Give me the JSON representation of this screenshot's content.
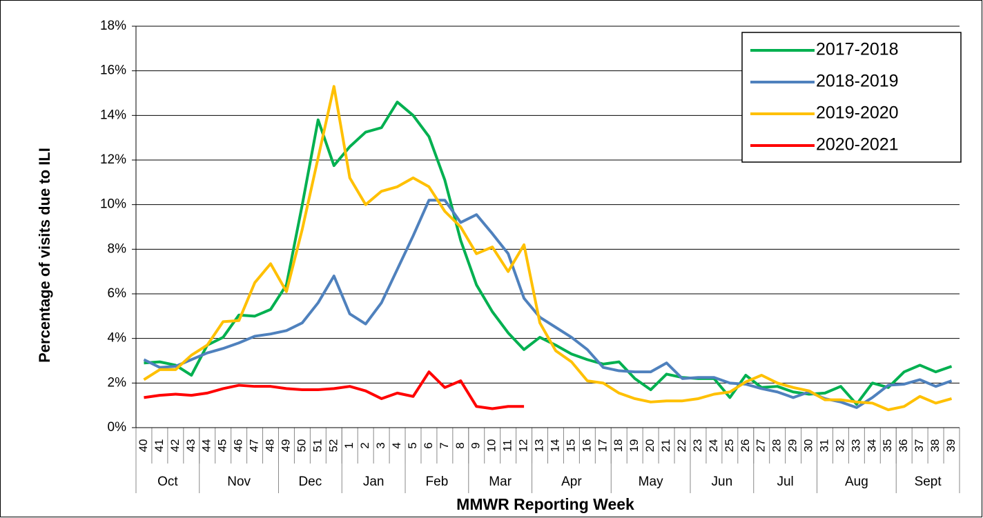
{
  "chart_data": {
    "type": "line",
    "y_label": "Percentage of visits due to ILI",
    "x_label": "MMWR Reporting Week",
    "categories": [
      "40",
      "41",
      "42",
      "43",
      "44",
      "45",
      "46",
      "47",
      "48",
      "49",
      "50",
      "51",
      "52",
      "1",
      "2",
      "3",
      "4",
      "5",
      "6",
      "7",
      "8",
      "9",
      "10",
      "11",
      "12",
      "13",
      "14",
      "15",
      "16",
      "17",
      "18",
      "19",
      "20",
      "21",
      "22",
      "23",
      "24",
      "25",
      "26",
      "27",
      "28",
      "29",
      "30",
      "31",
      "32",
      "33",
      "34",
      "35",
      "36",
      "37",
      "38",
      "39"
    ],
    "month_groups": [
      {
        "label": "Oct",
        "weeks": 4
      },
      {
        "label": "Nov",
        "weeks": 5
      },
      {
        "label": "Dec",
        "weeks": 4
      },
      {
        "label": "Jan",
        "weeks": 4
      },
      {
        "label": "Feb",
        "weeks": 4
      },
      {
        "label": "Mar",
        "weeks": 4
      },
      {
        "label": "Apr",
        "weeks": 5
      },
      {
        "label": "May",
        "weeks": 5
      },
      {
        "label": "Jun",
        "weeks": 4
      },
      {
        "label": "Jul",
        "weeks": 4
      },
      {
        "label": "Aug",
        "weeks": 5
      },
      {
        "label": "Sept",
        "weeks": 4
      }
    ],
    "series": [
      {
        "name": "2017-2018",
        "color": "#00b050",
        "values": [
          2.9,
          2.95,
          2.8,
          2.35,
          3.7,
          4.05,
          5.05,
          5.0,
          5.3,
          6.4,
          10.0,
          13.8,
          11.75,
          12.6,
          13.25,
          13.45,
          14.6,
          14.0,
          13.05,
          11.1,
          8.4,
          6.4,
          5.2,
          4.25,
          3.5,
          4.05,
          3.7,
          3.3,
          3.05,
          2.85,
          2.95,
          2.2,
          1.7,
          2.4,
          2.25,
          2.2,
          2.2,
          1.35,
          2.35,
          1.8,
          1.85,
          1.6,
          1.5,
          1.55,
          1.85,
          1.05,
          2.0,
          1.8,
          2.5,
          2.8,
          2.5,
          2.75
        ]
      },
      {
        "name": "2018-2019",
        "color": "#4f81bd",
        "values": [
          3.05,
          2.7,
          2.75,
          3.05,
          3.35,
          3.55,
          3.8,
          4.1,
          4.2,
          4.35,
          4.7,
          5.6,
          6.8,
          5.1,
          4.65,
          5.6,
          7.1,
          8.6,
          10.2,
          10.2,
          9.2,
          9.55,
          8.7,
          7.8,
          5.8,
          4.95,
          4.5,
          4.05,
          3.5,
          2.7,
          2.55,
          2.5,
          2.5,
          2.9,
          2.2,
          2.25,
          2.25,
          2.0,
          1.95,
          1.75,
          1.6,
          1.35,
          1.6,
          1.3,
          1.15,
          0.9,
          1.35,
          1.9,
          1.95,
          2.15,
          1.85,
          2.1
        ]
      },
      {
        "name": "2019-2020",
        "color": "#ffc000",
        "values": [
          2.15,
          2.6,
          2.6,
          3.25,
          3.7,
          4.75,
          4.8,
          6.5,
          7.35,
          6.1,
          8.9,
          12.1,
          15.3,
          11.2,
          10.0,
          10.6,
          10.8,
          11.2,
          10.8,
          9.7,
          9.0,
          7.8,
          8.1,
          7.0,
          8.2,
          4.7,
          3.45,
          2.95,
          2.1,
          2.0,
          1.55,
          1.3,
          1.15,
          1.2,
          1.2,
          1.3,
          1.5,
          1.6,
          2.05,
          2.35,
          2.0,
          1.8,
          1.65,
          1.25,
          1.25,
          1.15,
          1.1,
          0.8,
          0.95,
          1.4,
          1.1,
          1.3
        ]
      },
      {
        "name": "2020-2021",
        "color": "#ff0000",
        "values": [
          1.35,
          1.45,
          1.5,
          1.45,
          1.55,
          1.75,
          1.9,
          1.85,
          1.85,
          1.75,
          1.7,
          1.7,
          1.75,
          1.85,
          1.65,
          1.3,
          1.55,
          1.4,
          2.5,
          1.8,
          2.1,
          0.95,
          0.85,
          0.95,
          0.95,
          null,
          null,
          null,
          null,
          null,
          null,
          null,
          null,
          null,
          null,
          null,
          null,
          null,
          null,
          null,
          null,
          null,
          null,
          null,
          null,
          null,
          null,
          null,
          null,
          null,
          null,
          null
        ]
      }
    ],
    "ylim": [
      0,
      18
    ],
    "yticks": [
      {
        "value": 0,
        "label": "0%"
      },
      {
        "value": 2,
        "label": "2%"
      },
      {
        "value": 4,
        "label": "4%"
      },
      {
        "value": 6,
        "label": "6%"
      },
      {
        "value": 8,
        "label": "8%"
      },
      {
        "value": 10,
        "label": "10%"
      },
      {
        "value": 12,
        "label": "12%"
      },
      {
        "value": 14,
        "label": "14%"
      },
      {
        "value": 16,
        "label": "16%"
      },
      {
        "value": 18,
        "label": "18%"
      }
    ],
    "grid": true,
    "legend": "top-right"
  }
}
